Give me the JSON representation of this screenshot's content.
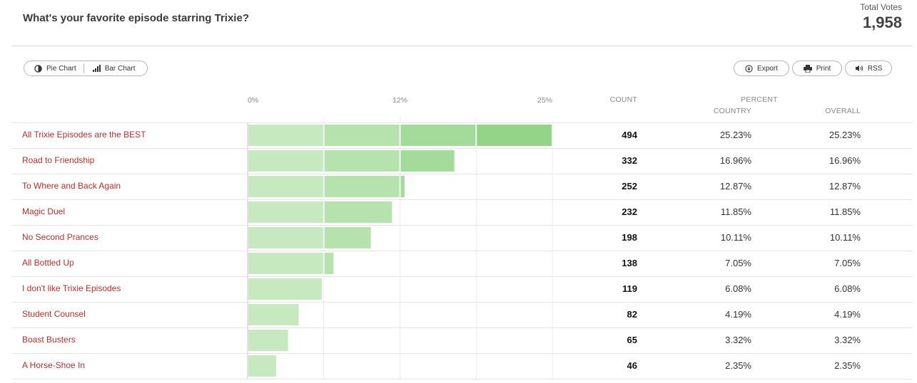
{
  "header": {
    "title": "What's your favorite episode starring Trixie?",
    "total_votes_label": "Total Votes",
    "total_votes_value": "1,958"
  },
  "toolbar": {
    "pie_chart_label": "Pie Chart",
    "bar_chart_label": "Bar Chart",
    "export_label": "Export",
    "print_label": "Print",
    "rss_label": "RSS"
  },
  "table_headers": {
    "count": "COUNT",
    "percent": "PERCENT",
    "country": "COUNTRY",
    "overall": "OVERALL"
  },
  "colors": {
    "label_text": "#b03030",
    "bar_light": "#c6e9c0",
    "bar_dark": "#93d488"
  },
  "chart_data": {
    "type": "bar",
    "orientation": "horizontal",
    "x_tick_labels": [
      "0%",
      "12%",
      "25%"
    ],
    "xlim": [
      0,
      25
    ],
    "categories": [
      "All Trixie Episodes are the BEST",
      "Road to Friendship",
      "To Where and Back Again",
      "Magic Duel",
      "No Second Prances",
      "All Bottled Up",
      "I don't like Trixie Episodes",
      "Student Counsel",
      "Boast Busters",
      "A Horse-Shoe In"
    ],
    "values": [
      25.23,
      16.96,
      12.87,
      11.85,
      10.11,
      7.05,
      6.08,
      4.19,
      3.32,
      2.35
    ],
    "counts": [
      "494",
      "332",
      "252",
      "232",
      "198",
      "138",
      "119",
      "82",
      "65",
      "46"
    ],
    "percent_country": [
      "25.23%",
      "16.96%",
      "12.87%",
      "11.85%",
      "10.11%",
      "7.05%",
      "6.08%",
      "4.19%",
      "3.32%",
      "2.35%"
    ],
    "percent_overall": [
      "25.23%",
      "16.96%",
      "12.87%",
      "11.85%",
      "10.11%",
      "7.05%",
      "6.08%",
      "4.19%",
      "3.32%",
      "2.35%"
    ],
    "grid": true
  }
}
